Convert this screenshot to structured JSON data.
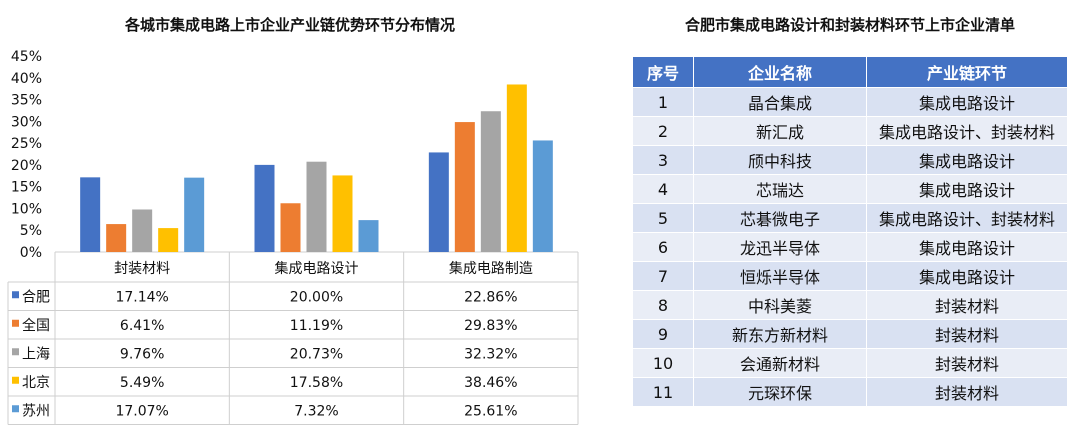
{
  "chart_data": {
    "type": "bar",
    "title": "各城市集成电路上市企业产业链优势环节分布情况",
    "categories": [
      "封装材料",
      "集成电路设计",
      "集成电路制造"
    ],
    "ylim": [
      0,
      45
    ],
    "yticks": [
      "0%",
      "5%",
      "10%",
      "15%",
      "20%",
      "25%",
      "30%",
      "35%",
      "40%",
      "45%"
    ],
    "series": [
      {
        "name": "合肥",
        "color": "#4472c4",
        "values": [
          17.14,
          20.0,
          22.86
        ],
        "labels": [
          "17.14%",
          "20.00%",
          "22.86%"
        ]
      },
      {
        "name": "全国",
        "color": "#ed7d31",
        "values": [
          6.41,
          11.19,
          29.83
        ],
        "labels": [
          "6.41%",
          "11.19%",
          "29.83%"
        ]
      },
      {
        "name": "上海",
        "color": "#a5a5a5",
        "values": [
          9.76,
          20.73,
          32.32
        ],
        "labels": [
          "9.76%",
          "20.73%",
          "32.32%"
        ]
      },
      {
        "name": "北京",
        "color": "#ffc000",
        "values": [
          5.49,
          17.58,
          38.46
        ],
        "labels": [
          "5.49%",
          "17.58%",
          "38.46%"
        ]
      },
      {
        "name": "苏州",
        "color": "#5b9bd5",
        "values": [
          17.07,
          7.32,
          25.61
        ],
        "labels": [
          "17.07%",
          "7.32%",
          "25.61%"
        ]
      }
    ],
    "grid": false,
    "legend": "data-table"
  },
  "table": {
    "title": "合肥市集成电路设计和封装材料环节上市企业清单",
    "headers": [
      "序号",
      "企业名称",
      "产业链环节"
    ],
    "rows": [
      [
        "1",
        "晶合集成",
        "集成电路设计"
      ],
      [
        "2",
        "新汇成",
        "集成电路设计、封装材料"
      ],
      [
        "3",
        "颀中科技",
        "集成电路设计"
      ],
      [
        "4",
        "芯瑞达",
        "集成电路设计"
      ],
      [
        "5",
        "芯碁微电子",
        "集成电路设计、封装材料"
      ],
      [
        "6",
        "龙迅半导体",
        "集成电路设计"
      ],
      [
        "7",
        "恒烁半导体",
        "集成电路设计"
      ],
      [
        "8",
        "中科美菱",
        "封装材料"
      ],
      [
        "9",
        "新东方新材料",
        "封装材料"
      ],
      [
        "10",
        "会通新材料",
        "封装材料"
      ],
      [
        "11",
        "元琛环保",
        "封装材料"
      ]
    ]
  }
}
